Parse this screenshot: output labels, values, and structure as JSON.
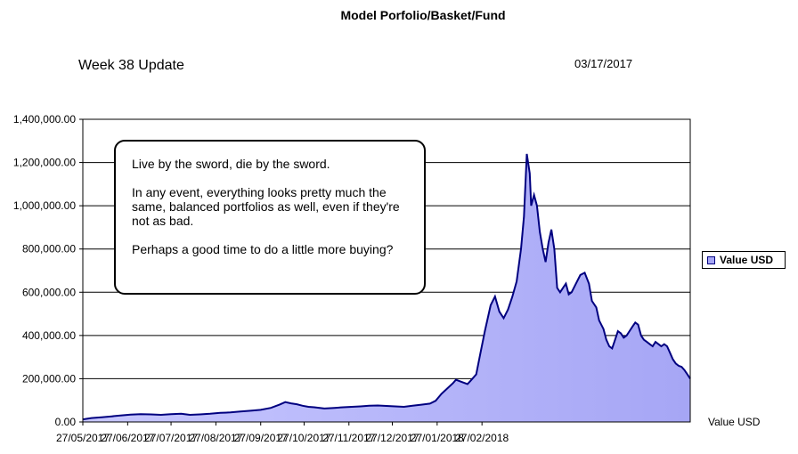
{
  "header": {
    "title": "Model Porfolio/Basket/Fund",
    "subtitle": "Week 38 Update",
    "date": "03/17/2017"
  },
  "annotation": {
    "lines": [
      "Live by the sword, die by the sword.",
      "In any event, everything looks pretty much the same, balanced portfolios as well, even if they're not as bad.",
      "Perhaps a good time to do a little more buying?"
    ]
  },
  "colors": {
    "area_fill": "#a6a6f5",
    "area_line": "#000080",
    "grid": "#000000"
  },
  "chart_data": {
    "type": "area",
    "series": [
      {
        "name": "Value USD",
        "values": [
          [
            0,
            12000
          ],
          [
            6,
            18000
          ],
          [
            13,
            22000
          ],
          [
            20,
            26000
          ],
          [
            26,
            30000
          ],
          [
            33,
            34000
          ],
          [
            40,
            36000
          ],
          [
            47,
            35000
          ],
          [
            54,
            33000
          ],
          [
            61,
            36000
          ],
          [
            68,
            38000
          ],
          [
            74,
            33000
          ],
          [
            81,
            35000
          ],
          [
            88,
            38000
          ],
          [
            95,
            42000
          ],
          [
            102,
            44000
          ],
          [
            109,
            48000
          ],
          [
            116,
            52000
          ],
          [
            123,
            56000
          ],
          [
            130,
            65000
          ],
          [
            136,
            80000
          ],
          [
            140,
            92000
          ],
          [
            144,
            86000
          ],
          [
            148,
            82000
          ],
          [
            152,
            75000
          ],
          [
            156,
            70000
          ],
          [
            160,
            68000
          ],
          [
            167,
            62000
          ],
          [
            174,
            65000
          ],
          [
            180,
            68000
          ],
          [
            186,
            70000
          ],
          [
            192,
            72000
          ],
          [
            198,
            75000
          ],
          [
            204,
            76000
          ],
          [
            210,
            74000
          ],
          [
            216,
            72000
          ],
          [
            222,
            70000
          ],
          [
            228,
            75000
          ],
          [
            234,
            80000
          ],
          [
            240,
            85000
          ],
          [
            244,
            98000
          ],
          [
            248,
            130000
          ],
          [
            252,
            155000
          ],
          [
            256,
            180000
          ],
          [
            258,
            195000
          ],
          [
            262,
            185000
          ],
          [
            266,
            175000
          ],
          [
            268,
            190000
          ],
          [
            272,
            220000
          ],
          [
            275,
            320000
          ],
          [
            278,
            420000
          ],
          [
            282,
            540000
          ],
          [
            285,
            580000
          ],
          [
            288,
            510000
          ],
          [
            291,
            480000
          ],
          [
            294,
            520000
          ],
          [
            297,
            580000
          ],
          [
            300,
            650000
          ],
          [
            303,
            800000
          ],
          [
            305,
            950000
          ],
          [
            307,
            1240000
          ],
          [
            309,
            1150000
          ],
          [
            310,
            1000000
          ],
          [
            312,
            1050000
          ],
          [
            314,
            1000000
          ],
          [
            316,
            880000
          ],
          [
            318,
            800000
          ],
          [
            320,
            740000
          ],
          [
            322,
            830000
          ],
          [
            324,
            890000
          ],
          [
            326,
            800000
          ],
          [
            328,
            620000
          ],
          [
            330,
            600000
          ],
          [
            332,
            620000
          ],
          [
            334,
            640000
          ],
          [
            336,
            590000
          ],
          [
            338,
            600000
          ],
          [
            341,
            640000
          ],
          [
            344,
            680000
          ],
          [
            347,
            690000
          ],
          [
            350,
            640000
          ],
          [
            352,
            560000
          ],
          [
            355,
            530000
          ],
          [
            357,
            470000
          ],
          [
            360,
            430000
          ],
          [
            362,
            380000
          ],
          [
            364,
            350000
          ],
          [
            366,
            340000
          ],
          [
            368,
            380000
          ],
          [
            370,
            420000
          ],
          [
            372,
            410000
          ],
          [
            374,
            390000
          ],
          [
            376,
            400000
          ],
          [
            378,
            420000
          ],
          [
            380,
            440000
          ],
          [
            382,
            460000
          ],
          [
            384,
            450000
          ],
          [
            386,
            400000
          ],
          [
            388,
            380000
          ],
          [
            390,
            370000
          ],
          [
            392,
            360000
          ],
          [
            394,
            350000
          ],
          [
            396,
            370000
          ],
          [
            398,
            360000
          ],
          [
            400,
            350000
          ],
          [
            402,
            360000
          ],
          [
            404,
            350000
          ],
          [
            406,
            320000
          ],
          [
            408,
            290000
          ],
          [
            410,
            270000
          ],
          [
            412,
            260000
          ],
          [
            414,
            255000
          ],
          [
            416,
            240000
          ],
          [
            418,
            220000
          ],
          [
            420,
            200000
          ]
        ]
      }
    ],
    "x_tick_labels": [
      "27/05/2017",
      "27/06/2017",
      "27/07/2017",
      "27/08/2017",
      "27/09/2017",
      "27/10/2017",
      "27/11/2017",
      "27/12/2017",
      "27/01/2018",
      "27/02/2018"
    ],
    "x_tick_days": [
      0,
      31,
      61,
      92,
      123,
      153,
      184,
      214,
      245,
      276
    ],
    "y_tick_labels": [
      "0.00",
      "200,000.00",
      "400,000.00",
      "600,000.00",
      "800,000.00",
      "1,000,000.00",
      "1,200,000.00",
      "1,400,000.00"
    ],
    "y_tick_values": [
      0,
      200000,
      400000,
      600000,
      800000,
      1000000,
      1200000,
      1400000
    ],
    "xlim": [
      0,
      420
    ],
    "ylim": [
      0,
      1400000
    ],
    "xlabel": "Value USD",
    "ylabel": "",
    "legend": "right",
    "grid": true
  }
}
